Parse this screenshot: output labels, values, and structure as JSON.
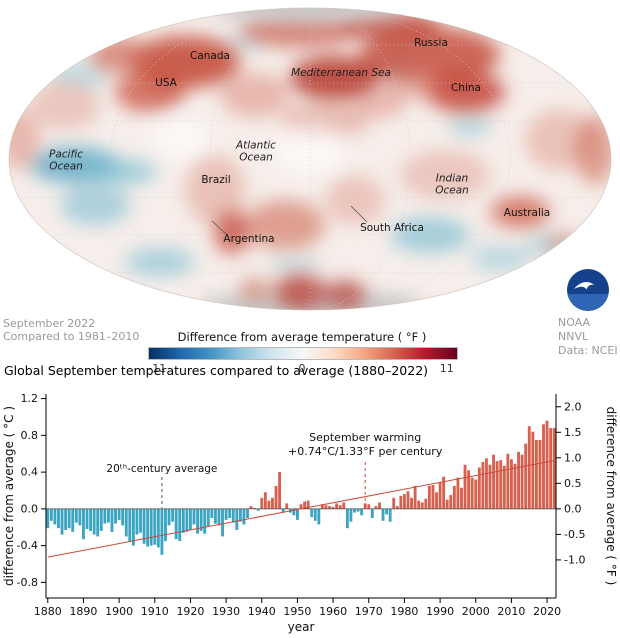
{
  "map": {
    "labels": {
      "canada": "Canada",
      "russia": "Russia",
      "usa": "USA",
      "mediterranean": "Mediterranean Sea",
      "china": "China",
      "pacific": "Pacific\nOcean",
      "atlantic": "Atlantic\nOcean",
      "brazil": "Brazil",
      "indian": "Indian\nOcean",
      "argentina": "Argentina",
      "south_africa": "South Africa",
      "australia": "Australia"
    }
  },
  "legend": {
    "left_caption": [
      "September 2022",
      "Compared to 1981–2010"
    ],
    "scale_title": "Difference from average temperature ( °F )",
    "scale_ticks": [
      "-11",
      "0",
      "11"
    ],
    "scale_colors": [
      "#053061",
      "#2166ac",
      "#4393c3",
      "#92c5de",
      "#d1e5f0",
      "#f7f7f7",
      "#fddbc7",
      "#f4a582",
      "#d6604d",
      "#b2182b",
      "#67001f"
    ],
    "credit": [
      "NOAA NNVL",
      "Data: NCEI"
    ]
  },
  "chart_data": {
    "type": "bar",
    "title": "Global September temperatures compared to average (1880–2022)",
    "xlabel": "year",
    "ylabel_left": "difference from average ( °C )",
    "ylabel_right": "difference from average ( °F )",
    "x_start": 1880,
    "x_end": 2022,
    "x_ticks": [
      1880,
      1890,
      1900,
      1910,
      1920,
      1930,
      1940,
      1950,
      1960,
      1970,
      1980,
      1990,
      2000,
      2010,
      2020
    ],
    "y_ticks_c": [
      -0.8,
      -0.4,
      0.0,
      0.4,
      0.8,
      1.2
    ],
    "y_ticks_f": [
      -1.0,
      -0.5,
      0.0,
      0.5,
      1.0,
      1.5,
      2.0
    ],
    "ylim_c": [
      -0.97,
      1.25
    ],
    "values_c": [
      -0.21,
      -0.13,
      -0.17,
      -0.21,
      -0.28,
      -0.23,
      -0.21,
      -0.25,
      -0.15,
      -0.18,
      -0.33,
      -0.22,
      -0.24,
      -0.28,
      -0.3,
      -0.24,
      -0.16,
      -0.15,
      -0.25,
      -0.16,
      -0.12,
      -0.18,
      -0.3,
      -0.36,
      -0.4,
      -0.28,
      -0.26,
      -0.38,
      -0.41,
      -0.4,
      -0.39,
      -0.42,
      -0.5,
      -0.35,
      -0.18,
      -0.14,
      -0.33,
      -0.35,
      -0.26,
      -0.25,
      -0.23,
      -0.17,
      -0.27,
      -0.24,
      -0.27,
      -0.19,
      -0.1,
      -0.16,
      -0.18,
      -0.3,
      -0.12,
      -0.1,
      -0.15,
      -0.23,
      -0.14,
      -0.17,
      -0.1,
      0.03,
      0.01,
      -0.02,
      0.12,
      0.18,
      0.09,
      0.12,
      0.25,
      0.4,
      -0.04,
      0.06,
      -0.04,
      -0.07,
      -0.12,
      0.05,
      0.08,
      0.09,
      -0.09,
      -0.13,
      -0.17,
      0.05,
      0.04,
      0.03,
      0.02,
      0.06,
      0.04,
      0.07,
      -0.21,
      -0.14,
      -0.04,
      -0.03,
      -0.07,
      0.06,
      0.05,
      -0.1,
      0.03,
      0.07,
      -0.13,
      -0.06,
      -0.14,
      0.12,
      0.03,
      0.14,
      0.16,
      0.19,
      0.12,
      0.25,
      0.09,
      0.07,
      0.11,
      0.25,
      0.26,
      0.18,
      0.29,
      0.35,
      0.1,
      0.15,
      0.25,
      0.34,
      0.23,
      0.48,
      0.42,
      0.34,
      0.32,
      0.45,
      0.51,
      0.55,
      0.48,
      0.59,
      0.52,
      0.53,
      0.47,
      0.6,
      0.54,
      0.49,
      0.62,
      0.59,
      0.71,
      0.9,
      0.84,
      0.75,
      0.75,
      0.92,
      0.96,
      0.88,
      0.88
    ],
    "trend": {
      "label_lines": [
        "September warming",
        "+0.74°C/1.33°F per century"
      ],
      "start_c": -0.525,
      "end_c": 0.525,
      "anchor_year": 1969
    },
    "baseline_annotation": {
      "text": "20ᵗʰ-century average",
      "anchor_year": 1912
    },
    "colors": {
      "positive": "#d8604e",
      "negative": "#3aa4c3",
      "trend": "#d0493a",
      "annotation": "#d0493a"
    }
  }
}
